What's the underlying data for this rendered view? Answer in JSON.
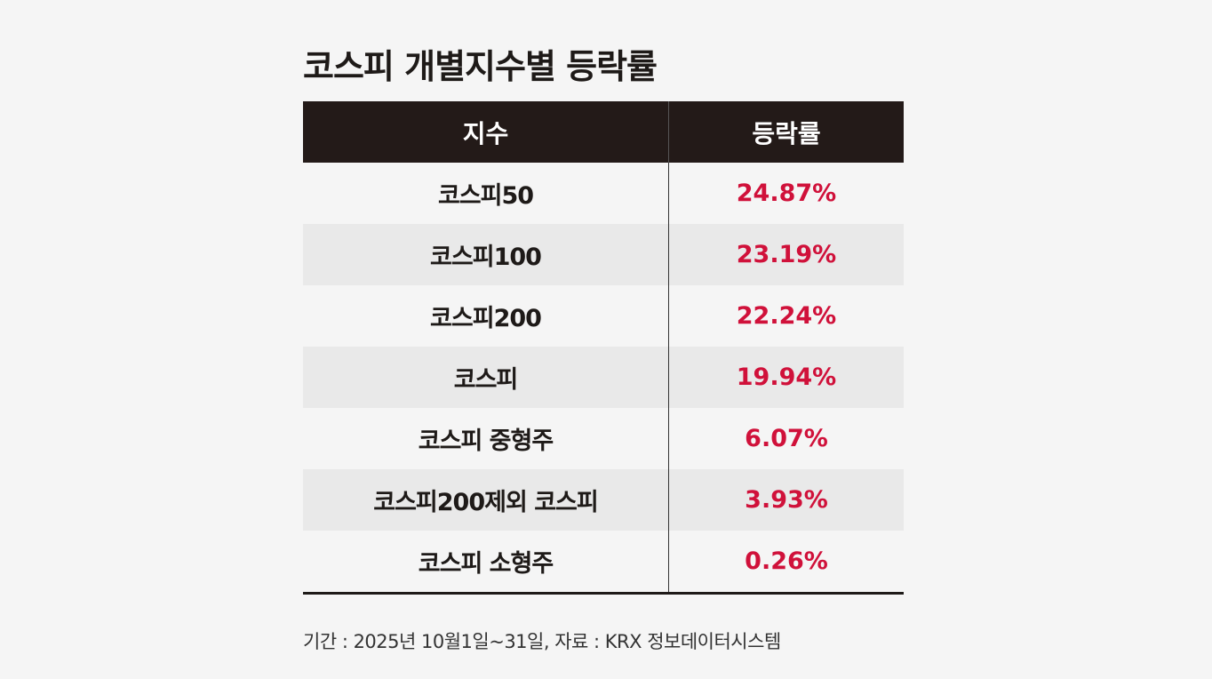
{
  "title": "코스피 개별지수별 등락률",
  "chart_data": {
    "type": "table",
    "title": "코스피 개별지수별 등락률",
    "columns": [
      "지수",
      "등락률"
    ],
    "rows": [
      {
        "name": "코스피50",
        "value": "24.87%"
      },
      {
        "name": "코스피100",
        "value": "23.19%"
      },
      {
        "name": "코스피200",
        "value": "22.24%"
      },
      {
        "name": "코스피",
        "value": "19.94%"
      },
      {
        "name": "코스피 중형주",
        "value": "6.07%"
      },
      {
        "name": "코스피200제외 코스피",
        "value": "3.93%"
      },
      {
        "name": "코스피 소형주",
        "value": "0.26%"
      }
    ]
  },
  "footer": "기간 : 2025년 10월1일~31일, 자료 : KRX 정보데이터시스템",
  "colors": {
    "header_bg": "#231a18",
    "value_text": "#d0113a",
    "alt_row": "#e9e9e9"
  }
}
